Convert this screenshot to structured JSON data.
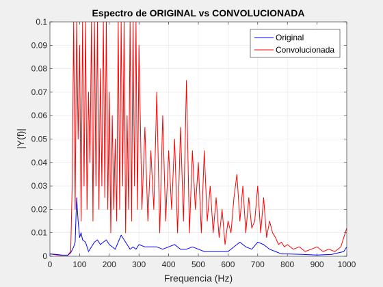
{
  "chart_data": {
    "type": "line",
    "title": "Espectro de ORIGINAL vs CONVOLUCIONADA",
    "xlabel": "Frequencia (Hz)",
    "ylabel": "|Y(f)|",
    "xlim": [
      0,
      1000
    ],
    "ylim": [
      0,
      0.1
    ],
    "xticks": [
      0,
      100,
      200,
      300,
      400,
      500,
      600,
      700,
      800,
      900,
      1000
    ],
    "yticks": [
      0,
      0.01,
      0.02,
      0.03,
      0.04,
      0.05,
      0.06,
      0.07,
      0.08,
      0.09,
      0.1
    ],
    "xtick_labels": [
      "0",
      "100",
      "200",
      "300",
      "400",
      "500",
      "600",
      "700",
      "800",
      "900",
      "1000"
    ],
    "ytick_labels": [
      "0",
      "0.01",
      "0.02",
      "0.03",
      "0.04",
      "0.05",
      "0.06",
      "0.07",
      "0.08",
      "0.09",
      "0.1"
    ],
    "grid": true,
    "legend_position": "top-right",
    "background_color": "#f0f0f0",
    "plot_background_color": "#ffffff",
    "grid_color": "#e6e6e6",
    "axis_color": "#262626",
    "series": [
      {
        "name": "Original",
        "color": "#0000ff",
        "x": [
          0,
          20,
          40,
          60,
          70,
          80,
          85,
          90,
          95,
          100,
          105,
          110,
          120,
          130,
          140,
          150,
          160,
          170,
          180,
          190,
          200,
          210,
          220,
          230,
          240,
          250,
          260,
          270,
          280,
          290,
          300,
          320,
          340,
          360,
          380,
          400,
          420,
          440,
          460,
          480,
          500,
          520,
          540,
          560,
          580,
          600,
          620,
          640,
          660,
          680,
          700,
          720,
          740,
          760,
          780,
          800,
          850,
          900,
          950,
          990,
          1000
        ],
        "y": [
          0.001,
          0.0008,
          0.0005,
          0.0004,
          0.0015,
          0.004,
          0.006,
          0.025,
          0.015,
          0.008,
          0.01,
          0.007,
          0.006,
          0.002,
          0.004,
          0.006,
          0.007,
          0.005,
          0.006,
          0.007,
          0.005,
          0.004,
          0.003,
          0.006,
          0.009,
          0.007,
          0.005,
          0.003,
          0.004,
          0.003,
          0.005,
          0.004,
          0.004,
          0.004,
          0.003,
          0.004,
          0.005,
          0.003,
          0.003,
          0.004,
          0.003,
          0.002,
          0.002,
          0.002,
          0.002,
          0.002,
          0.004,
          0.006,
          0.004,
          0.003,
          0.006,
          0.005,
          0.003,
          0.002,
          0.001,
          0.001,
          0.0008,
          0.0005,
          0.0008,
          0.002,
          0.004
        ]
      },
      {
        "name": "Convolucionada",
        "color": "#ff0000",
        "x": [
          0,
          20,
          40,
          60,
          70,
          75,
          80,
          85,
          90,
          95,
          100,
          105,
          110,
          115,
          120,
          125,
          130,
          135,
          140,
          145,
          150,
          155,
          160,
          165,
          170,
          175,
          180,
          185,
          190,
          195,
          200,
          205,
          210,
          215,
          220,
          225,
          230,
          235,
          240,
          245,
          250,
          255,
          260,
          265,
          270,
          275,
          280,
          285,
          290,
          295,
          300,
          310,
          320,
          330,
          340,
          350,
          360,
          370,
          380,
          390,
          400,
          410,
          420,
          430,
          440,
          450,
          460,
          470,
          480,
          490,
          500,
          510,
          520,
          530,
          540,
          550,
          560,
          570,
          580,
          590,
          600,
          610,
          620,
          630,
          640,
          650,
          660,
          670,
          680,
          690,
          700,
          710,
          720,
          730,
          740,
          750,
          760,
          770,
          780,
          790,
          800,
          820,
          840,
          860,
          880,
          900,
          920,
          940,
          960,
          980,
          990,
          1000
        ],
        "y": [
          0.001,
          0.0006,
          0.0004,
          0.0005,
          0.002,
          0.03,
          0.1,
          0.02,
          0.1,
          0.05,
          0.09,
          0.015,
          0.1,
          0.03,
          0.1,
          0.02,
          0.07,
          0.04,
          0.1,
          0.015,
          0.1,
          0.03,
          0.1,
          0.02,
          0.08,
          0.03,
          0.1,
          0.025,
          0.1,
          0.02,
          0.07,
          0.01,
          0.06,
          0.02,
          0.05,
          0.015,
          0.1,
          0.02,
          0.1,
          0.03,
          0.1,
          0.01,
          0.06,
          0.02,
          0.1,
          0.015,
          0.1,
          0.03,
          0.1,
          0.02,
          0.09,
          0.02,
          0.055,
          0.015,
          0.045,
          0.02,
          0.07,
          0.01,
          0.06,
          0.015,
          0.045,
          0.02,
          0.05,
          0.01,
          0.055,
          0.015,
          0.075,
          0.01,
          0.045,
          0.02,
          0.04,
          0.01,
          0.045,
          0.015,
          0.03,
          0.01,
          0.025,
          0.008,
          0.02,
          0.005,
          0.015,
          0.01,
          0.025,
          0.035,
          0.015,
          0.03,
          0.01,
          0.025,
          0.012,
          0.015,
          0.03,
          0.01,
          0.025,
          0.008,
          0.015,
          0.01,
          0.008,
          0.005,
          0.006,
          0.004,
          0.005,
          0.003,
          0.004,
          0.002,
          0.003,
          0.004,
          0.002,
          0.003,
          0.002,
          0.004,
          0.008,
          0.012
        ]
      }
    ]
  }
}
